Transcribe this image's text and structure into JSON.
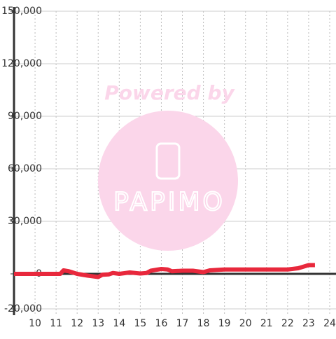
{
  "chart_data": {
    "type": "line",
    "xlim": [
      9,
      24.3
    ],
    "xticks": [
      10,
      11,
      12,
      13,
      14,
      15,
      16,
      17,
      18,
      19,
      20,
      21,
      22,
      23,
      24
    ],
    "ylim": [
      -20000,
      150000
    ],
    "yticks": [
      {
        "value": -20000,
        "label": "-20,000"
      },
      0,
      {
        "value": 30000,
        "label": "30,000"
      },
      {
        "value": 60000,
        "label": "60,000"
      },
      {
        "value": 90000,
        "label": "90,000"
      },
      {
        "value": 120000,
        "label": "120,000"
      },
      {
        "value": 150000,
        "label": "150,000"
      }
    ],
    "grid": true,
    "series": [
      {
        "color": "#e8283c",
        "x": [
          9,
          11.2,
          11.35,
          11.6,
          12,
          12.5,
          13,
          13.2,
          13.5,
          13.7,
          14,
          14.5,
          15,
          15.3,
          15.5,
          16,
          16.3,
          16.5,
          17,
          17.5,
          18,
          18.3,
          19,
          20,
          21,
          22,
          22.5,
          23,
          23.3
        ],
        "values": [
          0,
          0,
          2000,
          1500,
          0,
          -1000,
          -1800,
          -500,
          -300,
          500,
          0,
          800,
          200,
          500,
          1800,
          2800,
          2500,
          1500,
          1800,
          1800,
          1000,
          2000,
          2500,
          2500,
          2500,
          2500,
          3200,
          5000,
          5000
        ]
      }
    ],
    "watermark": {
      "text": "Powered by",
      "logo": "PAPIMO"
    }
  }
}
